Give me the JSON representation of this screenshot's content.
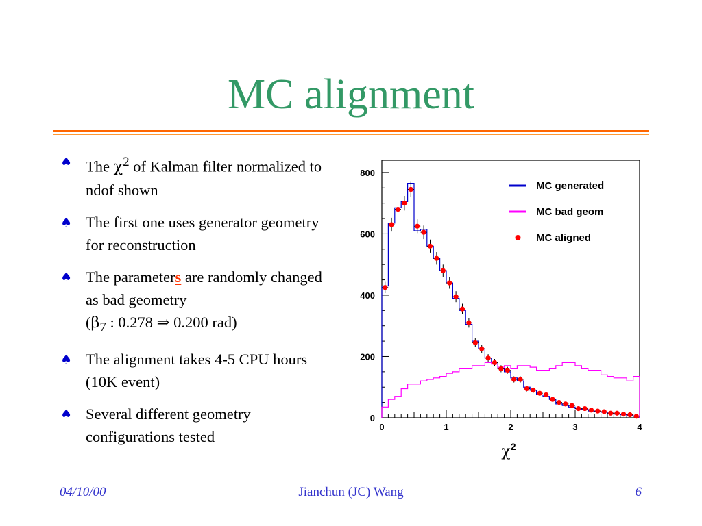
{
  "slide": {
    "title": "MC alignment",
    "bullets": [
      {
        "pre": "The ",
        "sym": "χ",
        "sup": "2",
        "post": " of Kalman filter normalized to ndof shown"
      },
      {
        "text": "The first one uses generator geometry for reconstruction"
      },
      {
        "pre": "The parameter",
        "accent": "s",
        "mid": " are randomly changed as bad geometry",
        "line2_open": "(",
        "sym": "β",
        "sub": "7",
        "line2_rest": " :  0.278 ⇒ 0.200 rad)"
      },
      {
        "text": " The alignment takes 4-5 CPU hours  (10K event)"
      },
      {
        "text": " Several different geometry configurations tested"
      }
    ],
    "footer": {
      "date": "04/10/00",
      "author": "Jianchun (JC) Wang",
      "page": "6"
    }
  },
  "colors": {
    "title": "#339966",
    "rule": "#ff6600",
    "bullet_icon": "#0000cc",
    "accent": "#ff3300",
    "footer": "#3333cc"
  },
  "icons": {
    "bullet": "spade-icon"
  },
  "chart_data": {
    "type": "line",
    "xlabel_base": "χ",
    "xlabel_sup": "2",
    "xlim": [
      0,
      4
    ],
    "ylim": [
      0,
      840
    ],
    "xticks": [
      0,
      1,
      2,
      3,
      4
    ],
    "yticks": [
      0,
      200,
      400,
      600,
      800
    ],
    "bin_width": 0.1,
    "legend_position": "top-right",
    "series": [
      {
        "name": "MC generated",
        "style": "step",
        "color": "#0000cc",
        "values": [
          430,
          635,
          685,
          705,
          765,
          610,
          615,
          560,
          520,
          480,
          440,
          390,
          350,
          305,
          250,
          225,
          195,
          180,
          160,
          150,
          130,
          120,
          100,
          90,
          75,
          70,
          60,
          45,
          40,
          35,
          30,
          28,
          22,
          20,
          18,
          15,
          12,
          10,
          8,
          5
        ]
      },
      {
        "name": "MC bad geom",
        "style": "step",
        "color": "#ff00ff",
        "values": [
          35,
          60,
          70,
          95,
          110,
          110,
          120,
          125,
          130,
          135,
          145,
          150,
          160,
          160,
          170,
          170,
          180,
          175,
          165,
          170,
          160,
          170,
          170,
          165,
          155,
          155,
          160,
          170,
          180,
          180,
          170,
          160,
          155,
          155,
          140,
          135,
          130,
          130,
          120,
          135
        ]
      },
      {
        "name": "MC aligned",
        "style": "markers",
        "color": "#ff0000",
        "values": [
          425,
          630,
          680,
          700,
          745,
          625,
          605,
          560,
          520,
          480,
          440,
          395,
          355,
          310,
          245,
          225,
          195,
          180,
          160,
          155,
          125,
          125,
          95,
          90,
          80,
          75,
          60,
          50,
          45,
          40,
          30,
          30,
          25,
          22,
          20,
          15,
          15,
          12,
          10,
          5
        ]
      }
    ]
  }
}
